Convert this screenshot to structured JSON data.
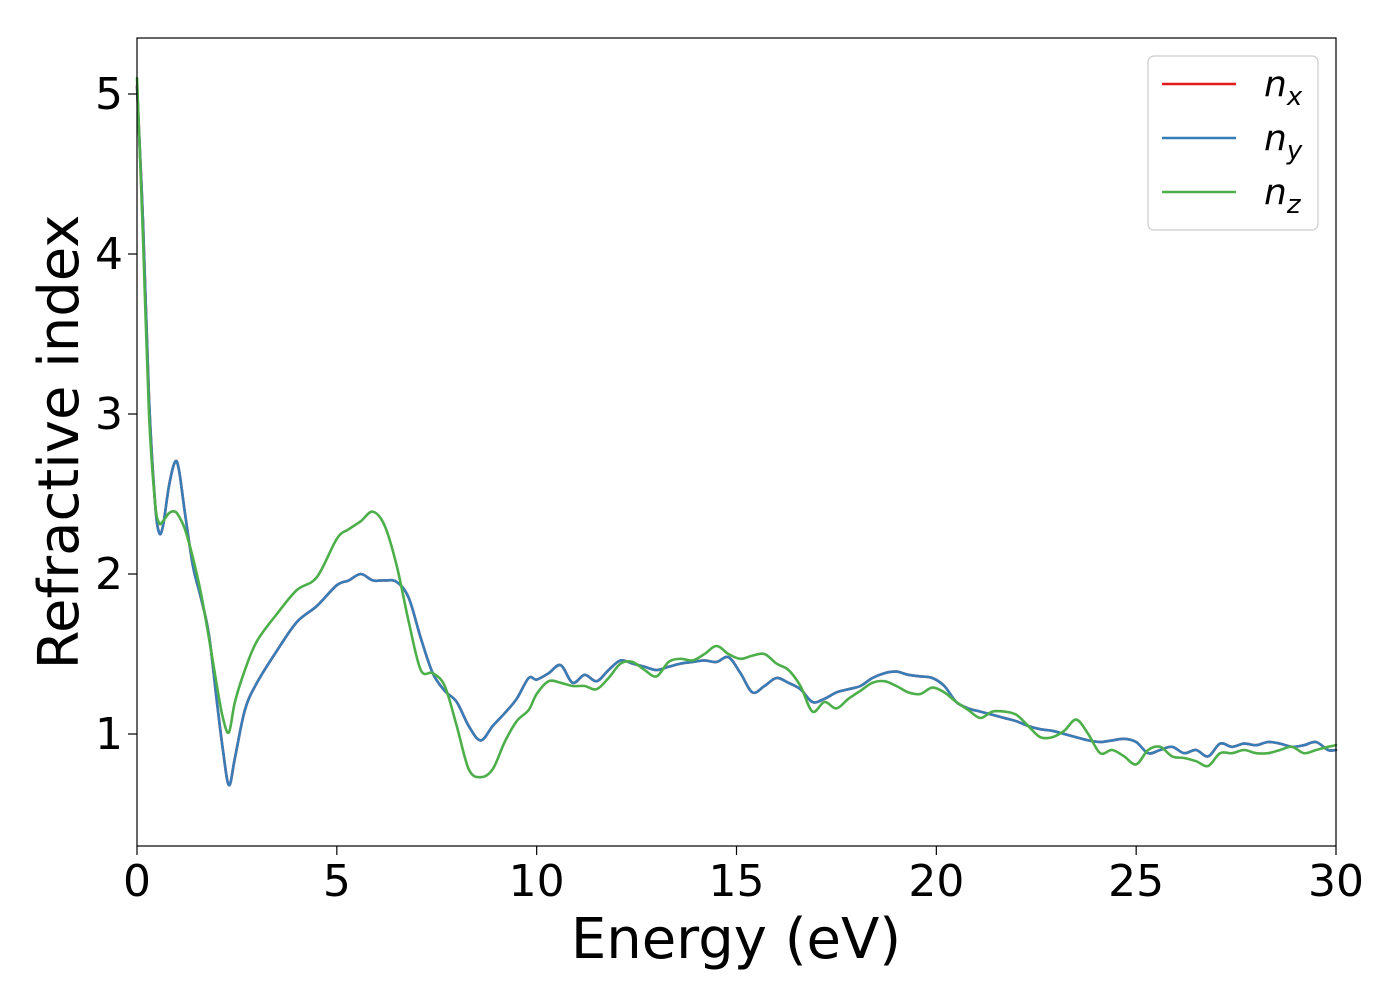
{
  "chart_data": {
    "type": "line",
    "xlabel": "Energy (eV)",
    "ylabel": "Refractive index",
    "xlim": [
      0,
      30
    ],
    "ylim": [
      0.3,
      5.35
    ],
    "xticks": [
      0,
      5,
      10,
      15,
      20,
      25,
      30
    ],
    "yticks": [
      1,
      2,
      3,
      4,
      5
    ],
    "grid": false,
    "legend_position": "top-right",
    "series": [
      {
        "name": "n_x",
        "legend_base": "n",
        "legend_sub": "x",
        "color": "#e41a1c",
        "x": [
          0,
          0.15,
          0.3,
          0.45,
          0.55,
          0.65,
          0.8,
          0.95,
          1.05,
          1.2,
          1.4,
          1.6,
          1.8,
          2.0,
          2.15,
          2.3,
          2.45,
          2.7,
          3.0,
          3.5,
          4.0,
          4.5,
          5.0,
          5.3,
          5.6,
          5.9,
          6.2,
          6.5,
          6.8,
          7.1,
          7.4,
          7.7,
          8.0,
          8.3,
          8.6,
          8.9,
          9.2,
          9.5,
          9.8,
          10.0,
          10.3,
          10.6,
          10.9,
          11.2,
          11.5,
          11.8,
          12.1,
          12.4,
          12.7,
          13.0,
          13.3,
          13.6,
          13.9,
          14.2,
          14.5,
          14.8,
          15.1,
          15.4,
          15.7,
          16.0,
          16.3,
          16.6,
          16.9,
          17.2,
          17.5,
          17.8,
          18.1,
          18.4,
          18.7,
          19.0,
          19.3,
          19.6,
          19.9,
          20.2,
          20.5,
          20.8,
          21.1,
          21.4,
          21.7,
          22.0,
          22.3,
          22.6,
          22.9,
          23.2,
          23.5,
          23.8,
          24.1,
          24.4,
          24.7,
          25.0,
          25.3,
          25.6,
          25.9,
          26.2,
          26.5,
          26.8,
          27.1,
          27.4,
          27.7,
          28.0,
          28.3,
          28.6,
          28.9,
          29.2,
          29.5,
          29.8,
          30.0
        ],
        "values": [
          5.05,
          4.2,
          3.1,
          2.45,
          2.26,
          2.3,
          2.55,
          2.7,
          2.65,
          2.38,
          2.05,
          1.85,
          1.62,
          1.2,
          0.9,
          0.68,
          0.85,
          1.15,
          1.32,
          1.52,
          1.7,
          1.8,
          1.93,
          1.96,
          2.0,
          1.96,
          1.96,
          1.95,
          1.85,
          1.6,
          1.38,
          1.27,
          1.2,
          1.05,
          0.96,
          1.05,
          1.13,
          1.22,
          1.35,
          1.34,
          1.38,
          1.43,
          1.32,
          1.37,
          1.33,
          1.4,
          1.46,
          1.44,
          1.42,
          1.4,
          1.42,
          1.44,
          1.45,
          1.46,
          1.45,
          1.48,
          1.38,
          1.26,
          1.3,
          1.35,
          1.32,
          1.28,
          1.2,
          1.22,
          1.26,
          1.28,
          1.3,
          1.35,
          1.38,
          1.39,
          1.37,
          1.36,
          1.35,
          1.3,
          1.2,
          1.16,
          1.14,
          1.12,
          1.1,
          1.08,
          1.05,
          1.03,
          1.02,
          1.0,
          0.98,
          0.96,
          0.95,
          0.96,
          0.97,
          0.95,
          0.88,
          0.9,
          0.92,
          0.88,
          0.9,
          0.86,
          0.94,
          0.92,
          0.94,
          0.93,
          0.95,
          0.94,
          0.92,
          0.93,
          0.95,
          0.9,
          0.9
        ]
      },
      {
        "name": "n_y",
        "legend_base": "n",
        "legend_sub": "y",
        "color": "#377eb8",
        "x": [
          0,
          0.15,
          0.3,
          0.45,
          0.55,
          0.65,
          0.8,
          0.95,
          1.05,
          1.2,
          1.4,
          1.6,
          1.8,
          2.0,
          2.15,
          2.3,
          2.45,
          2.7,
          3.0,
          3.5,
          4.0,
          4.5,
          5.0,
          5.3,
          5.6,
          5.9,
          6.2,
          6.5,
          6.8,
          7.1,
          7.4,
          7.7,
          8.0,
          8.3,
          8.6,
          8.9,
          9.2,
          9.5,
          9.8,
          10.0,
          10.3,
          10.6,
          10.9,
          11.2,
          11.5,
          11.8,
          12.1,
          12.4,
          12.7,
          13.0,
          13.3,
          13.6,
          13.9,
          14.2,
          14.5,
          14.8,
          15.1,
          15.4,
          15.7,
          16.0,
          16.3,
          16.6,
          16.9,
          17.2,
          17.5,
          17.8,
          18.1,
          18.4,
          18.7,
          19.0,
          19.3,
          19.6,
          19.9,
          20.2,
          20.5,
          20.8,
          21.1,
          21.4,
          21.7,
          22.0,
          22.3,
          22.6,
          22.9,
          23.2,
          23.5,
          23.8,
          24.1,
          24.4,
          24.7,
          25.0,
          25.3,
          25.6,
          25.9,
          26.2,
          26.5,
          26.8,
          27.1,
          27.4,
          27.7,
          28.0,
          28.3,
          28.6,
          28.9,
          29.2,
          29.5,
          29.8,
          30.0
        ],
        "values": [
          5.05,
          4.2,
          3.1,
          2.45,
          2.26,
          2.3,
          2.55,
          2.7,
          2.65,
          2.38,
          2.05,
          1.85,
          1.62,
          1.2,
          0.9,
          0.68,
          0.85,
          1.15,
          1.32,
          1.52,
          1.7,
          1.8,
          1.93,
          1.96,
          2.0,
          1.96,
          1.96,
          1.95,
          1.85,
          1.6,
          1.38,
          1.27,
          1.2,
          1.05,
          0.96,
          1.05,
          1.13,
          1.22,
          1.35,
          1.34,
          1.38,
          1.43,
          1.32,
          1.37,
          1.33,
          1.4,
          1.46,
          1.44,
          1.42,
          1.4,
          1.42,
          1.44,
          1.45,
          1.46,
          1.45,
          1.48,
          1.38,
          1.26,
          1.3,
          1.35,
          1.32,
          1.28,
          1.2,
          1.22,
          1.26,
          1.28,
          1.3,
          1.35,
          1.38,
          1.39,
          1.37,
          1.36,
          1.35,
          1.3,
          1.2,
          1.16,
          1.14,
          1.12,
          1.1,
          1.08,
          1.05,
          1.03,
          1.02,
          1.0,
          0.98,
          0.96,
          0.95,
          0.96,
          0.97,
          0.95,
          0.88,
          0.9,
          0.92,
          0.88,
          0.9,
          0.86,
          0.94,
          0.92,
          0.94,
          0.93,
          0.95,
          0.94,
          0.92,
          0.93,
          0.95,
          0.9,
          0.9
        ]
      },
      {
        "name": "n_z",
        "legend_base": "n",
        "legend_sub": "z",
        "color": "#4daf4a",
        "x": [
          0,
          0.15,
          0.3,
          0.45,
          0.55,
          0.65,
          0.8,
          0.95,
          1.05,
          1.2,
          1.4,
          1.6,
          1.8,
          2.0,
          2.15,
          2.3,
          2.45,
          2.7,
          3.0,
          3.5,
          4.0,
          4.5,
          5.0,
          5.3,
          5.6,
          5.9,
          6.2,
          6.5,
          6.8,
          7.1,
          7.4,
          7.7,
          8.0,
          8.3,
          8.6,
          8.9,
          9.2,
          9.5,
          9.8,
          10.0,
          10.3,
          10.6,
          10.9,
          11.2,
          11.5,
          11.8,
          12.1,
          12.4,
          12.7,
          13.0,
          13.3,
          13.6,
          13.9,
          14.2,
          14.5,
          14.8,
          15.1,
          15.4,
          15.7,
          16.0,
          16.3,
          16.6,
          16.9,
          17.2,
          17.5,
          17.8,
          18.1,
          18.4,
          18.7,
          19.0,
          19.3,
          19.6,
          19.9,
          20.2,
          20.5,
          20.8,
          21.1,
          21.4,
          21.7,
          22.0,
          22.3,
          22.6,
          22.9,
          23.2,
          23.5,
          23.8,
          24.1,
          24.4,
          24.7,
          25.0,
          25.3,
          25.6,
          25.9,
          26.2,
          26.5,
          26.8,
          27.1,
          27.4,
          27.7,
          28.0,
          28.3,
          28.6,
          28.9,
          29.2,
          29.5,
          29.8,
          30.0
        ],
        "values": [
          5.1,
          4.1,
          3.0,
          2.45,
          2.32,
          2.33,
          2.38,
          2.39,
          2.36,
          2.28,
          2.1,
          1.88,
          1.6,
          1.3,
          1.1,
          1.01,
          1.2,
          1.4,
          1.58,
          1.75,
          1.9,
          1.98,
          2.22,
          2.28,
          2.33,
          2.39,
          2.3,
          2.05,
          1.7,
          1.4,
          1.38,
          1.3,
          1.05,
          0.78,
          0.73,
          0.78,
          0.95,
          1.08,
          1.15,
          1.25,
          1.33,
          1.32,
          1.3,
          1.3,
          1.28,
          1.35,
          1.44,
          1.45,
          1.4,
          1.36,
          1.45,
          1.47,
          1.46,
          1.5,
          1.55,
          1.5,
          1.47,
          1.49,
          1.5,
          1.44,
          1.4,
          1.3,
          1.14,
          1.2,
          1.16,
          1.22,
          1.27,
          1.32,
          1.33,
          1.3,
          1.26,
          1.25,
          1.29,
          1.26,
          1.2,
          1.15,
          1.1,
          1.14,
          1.14,
          1.12,
          1.05,
          0.98,
          0.98,
          1.02,
          1.09,
          1.0,
          0.88,
          0.9,
          0.86,
          0.81,
          0.9,
          0.92,
          0.86,
          0.85,
          0.83,
          0.8,
          0.88,
          0.88,
          0.9,
          0.88,
          0.88,
          0.9,
          0.92,
          0.88,
          0.9,
          0.92,
          0.93
        ]
      }
    ]
  }
}
